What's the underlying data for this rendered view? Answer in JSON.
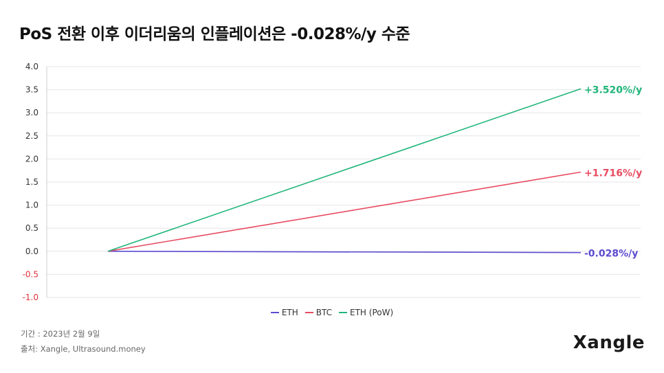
{
  "title": "PoS 전환 이후 이더리움의 인플레이션은 -0.028%/y 수준",
  "footnotes": {
    "period": "기간 : 2023년 2월 9일",
    "source": "출처: Xangle, Ultrasound.money"
  },
  "logo": "Xangle",
  "chart_data": {
    "type": "line",
    "title": "PoS 전환 이후 이더리움의 인플레이션은 -0.028%/y 수준",
    "xlabel": "",
    "ylabel": "",
    "ylim": [
      -1.0,
      4.0
    ],
    "yticks": [
      "4.0",
      "3.5",
      "3.0",
      "2.5",
      "2.0",
      "1.5",
      "1.0",
      "0.5",
      "0.0",
      "-0.5",
      "-1.0"
    ],
    "grid": true,
    "legend_position": "bottom",
    "x": [
      0,
      1
    ],
    "series": [
      {
        "name": "ETH",
        "values": [
          0,
          -0.028
        ],
        "color": "#5b4bd1",
        "end_label": "-0.028%/y"
      },
      {
        "name": "BTC",
        "values": [
          0,
          1.716
        ],
        "color": "#e84a5f",
        "end_label": "+1.716%/y"
      },
      {
        "name": "ETH (PoW)",
        "values": [
          0,
          3.52
        ],
        "color": "#1fb57a",
        "end_label": "+3.520%/y"
      }
    ],
    "colors": {
      "positive_tick": "#333333",
      "negative_tick": "#e0303a",
      "grid": "#e6e6e6"
    }
  }
}
